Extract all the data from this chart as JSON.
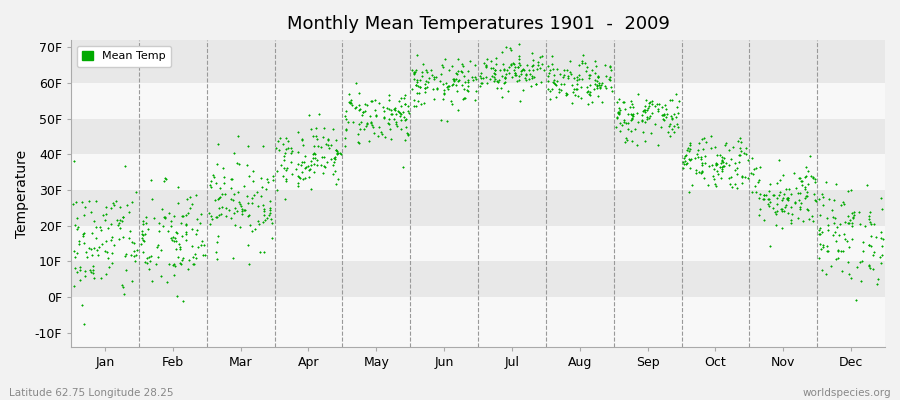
{
  "title": "Monthly Mean Temperatures 1901  -  2009",
  "ylabel": "Temperature",
  "xlabel_labels": [
    "Jan",
    "Feb",
    "Mar",
    "Apr",
    "May",
    "Jun",
    "Jul",
    "Aug",
    "Sep",
    "Oct",
    "Nov",
    "Dec"
  ],
  "ytick_labels": [
    "-10F",
    "0F",
    "10F",
    "20F",
    "30F",
    "40F",
    "50F",
    "60F",
    "70F"
  ],
  "ytick_values": [
    -10,
    0,
    10,
    20,
    30,
    40,
    50,
    60,
    70
  ],
  "ylim": [
    -14,
    72
  ],
  "dot_color": "#00aa00",
  "background_color": "#f2f2f2",
  "plot_bg_light": "#f8f8f8",
  "plot_bg_dark": "#e8e8e8",
  "legend_label": "Mean Temp",
  "footer_left": "Latitude 62.75 Longitude 28.25",
  "footer_right": "worldspecies.org",
  "n_years": 109,
  "monthly_means_f": [
    15.0,
    15.8,
    27.0,
    39.5,
    50.5,
    59.5,
    63.5,
    60.0,
    50.5,
    38.0,
    28.5,
    17.5
  ],
  "monthly_std_f": [
    8.5,
    8.0,
    6.5,
    4.5,
    4.0,
    3.5,
    3.0,
    3.0,
    3.5,
    4.0,
    5.0,
    7.0
  ],
  "seed": 42
}
